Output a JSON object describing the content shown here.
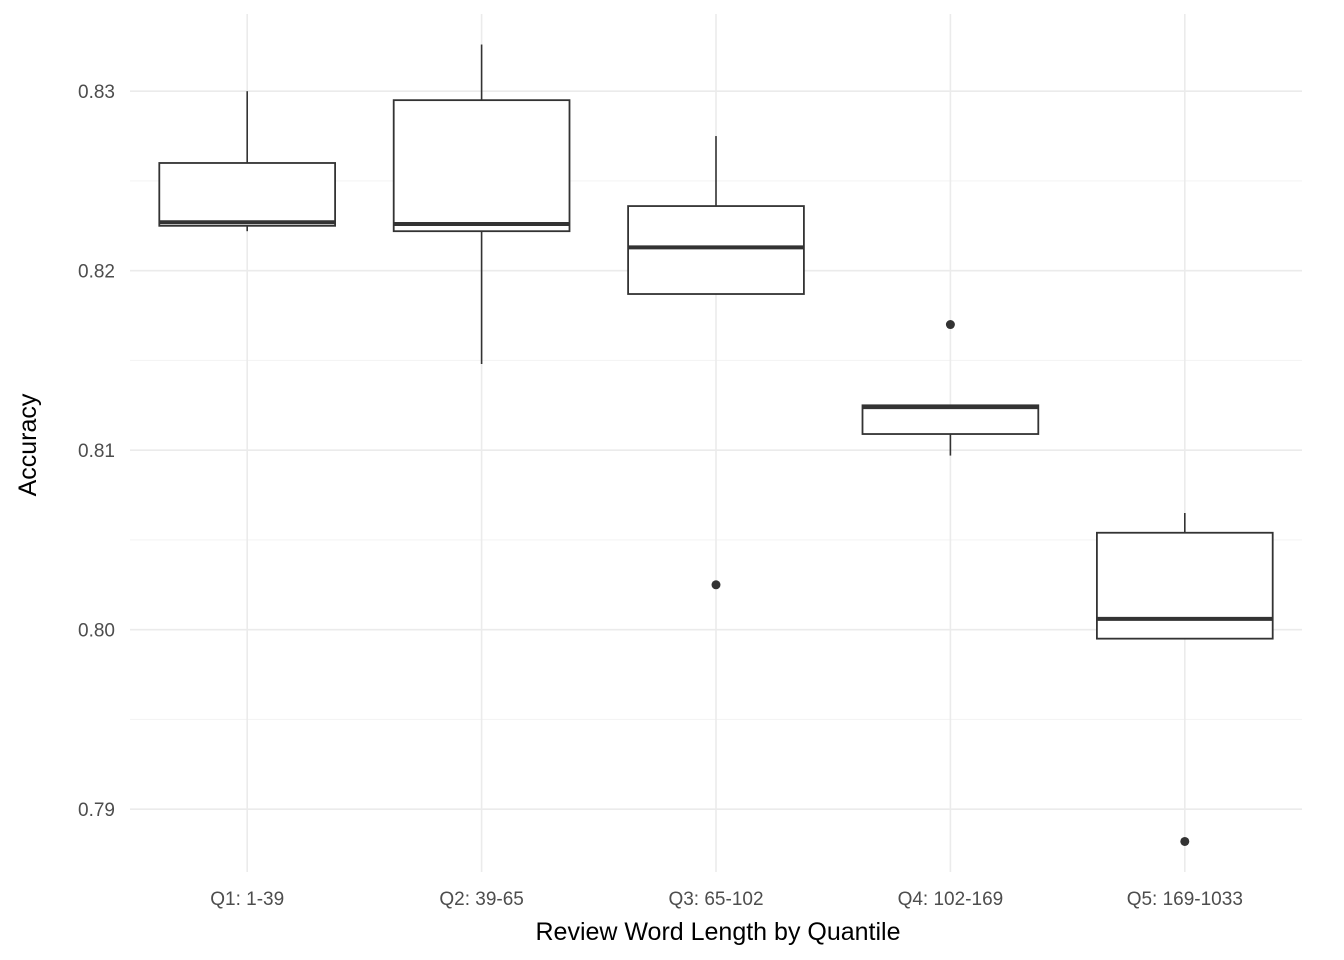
{
  "chart_data": {
    "type": "boxplot",
    "title": "",
    "xlabel": "Review Word Length by Quantile",
    "ylabel": "Accuracy",
    "categories": [
      "Q1: 1-39",
      "Q2: 39-65",
      "Q3: 65-102",
      "Q4: 102-169",
      "Q5: 169-1033"
    ],
    "ylim": [
      0.7865,
      0.8343
    ],
    "y_ticks": [
      0.79,
      0.8,
      0.81,
      0.82,
      0.83
    ],
    "y_tick_labels": [
      "0.79",
      "0.80",
      "0.81",
      "0.82",
      "0.83"
    ],
    "grid": true,
    "legend": "none",
    "boxes": [
      {
        "category": "Q1: 1-39",
        "lower_whisker": 0.8222,
        "q1": 0.8225,
        "median": 0.8227,
        "q3": 0.826,
        "upper_whisker": 0.83,
        "outliers": []
      },
      {
        "category": "Q2: 39-65",
        "lower_whisker": 0.8148,
        "q1": 0.8222,
        "median": 0.8226,
        "q3": 0.8295,
        "upper_whisker": 0.8326,
        "outliers": []
      },
      {
        "category": "Q3: 65-102",
        "lower_whisker": 0.8187,
        "q1": 0.8187,
        "median": 0.8213,
        "q3": 0.8236,
        "upper_whisker": 0.8275,
        "outliers": [
          0.8025
        ]
      },
      {
        "category": "Q4: 102-169",
        "lower_whisker": 0.8097,
        "q1": 0.8109,
        "median": 0.8124,
        "q3": 0.8125,
        "upper_whisker": 0.8125,
        "outliers": [
          0.817
        ]
      },
      {
        "category": "Q5: 169-1033",
        "lower_whisker": 0.7995,
        "q1": 0.7995,
        "median": 0.8006,
        "q3": 0.8054,
        "upper_whisker": 0.8065,
        "outliers": [
          0.7882
        ]
      }
    ],
    "colors": {
      "box_stroke": "#333333",
      "box_fill": "#ffffff",
      "grid_major": "#ebebeb",
      "grid_minor": "#f4f4f4",
      "tick_text": "#4d4d4d",
      "title_text": "#000000"
    }
  }
}
